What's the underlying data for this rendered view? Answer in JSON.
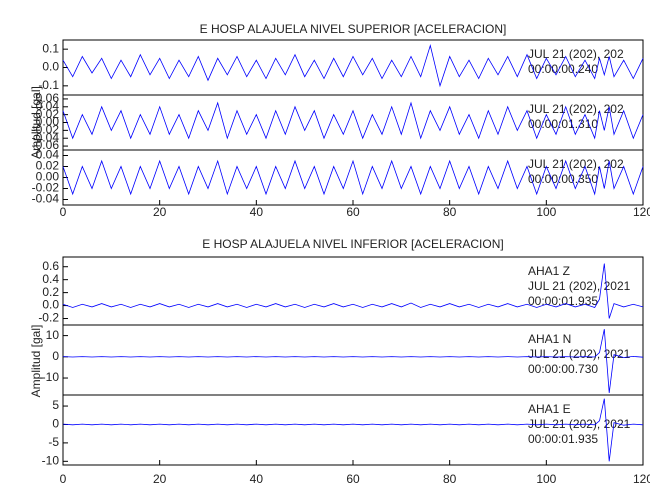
{
  "chart_data": [
    {
      "type": "line",
      "title": "E HOSP ALAJUELA NIVEL SUPERIOR [ACELERACION]",
      "ylabel": "Amplitud [gal]",
      "color": "#0000ff",
      "x": [
        0,
        2,
        4,
        6,
        8,
        10,
        12,
        14,
        16,
        18,
        20,
        22,
        24,
        26,
        28,
        30,
        32,
        34,
        36,
        38,
        40,
        42,
        44,
        46,
        48,
        50,
        52,
        54,
        56,
        58,
        60,
        62,
        64,
        66,
        68,
        70,
        72,
        74,
        76,
        78,
        80,
        82,
        84,
        86,
        88,
        90,
        92,
        94,
        96,
        98,
        100,
        102,
        104,
        106,
        108,
        110,
        111,
        112,
        113,
        114,
        116,
        118,
        120
      ],
      "xlim": [
        0,
        120
      ],
      "xticks": [
        0,
        20,
        40,
        60,
        80,
        100,
        120
      ],
      "panels": [
        {
          "annotations": [
            "JUL 21 (202), 202",
            "00:00:00.240"
          ],
          "ylim": [
            -0.15,
            0.15
          ],
          "yticks": [
            0.1,
            {
              "value": 0,
              "label": "0.0"
            },
            -0.1
          ],
          "values": [
            0.04,
            -0.05,
            0.06,
            -0.03,
            0.05,
            -0.06,
            0.04,
            -0.05,
            0.07,
            -0.04,
            0.05,
            -0.06,
            0.04,
            -0.05,
            0.06,
            -0.07,
            0.05,
            -0.04,
            0.06,
            -0.05,
            0.04,
            -0.06,
            0.05,
            -0.04,
            0.07,
            -0.05,
            0.04,
            -0.06,
            0.05,
            -0.05,
            0.06,
            -0.04,
            0.05,
            -0.06,
            0.04,
            -0.05,
            0.06,
            -0.05,
            0.12,
            -0.1,
            0.06,
            -0.05,
            0.04,
            -0.06,
            0.05,
            -0.04,
            0.06,
            -0.05,
            0.07,
            -0.06,
            0.05,
            -0.04,
            0.06,
            -0.05,
            0.04,
            -0.06,
            0.05,
            -0.04,
            0.06,
            -0.05,
            0.04,
            -0.06,
            0.05
          ]
        },
        {
          "annotations": [
            "JUL 21 (202), 202",
            "00:00:01.310"
          ],
          "ylim": [
            -0.07,
            0.07
          ],
          "yticks": [
            0.06,
            0.04,
            0.02,
            {
              "value": 0,
              "label": "0.00"
            },
            -0.02,
            -0.04,
            -0.06
          ],
          "values": [
            0.03,
            -0.04,
            0.02,
            -0.03,
            0.04,
            -0.02,
            0.03,
            -0.04,
            0.02,
            -0.03,
            0.04,
            -0.03,
            0.02,
            -0.04,
            0.03,
            -0.02,
            0.05,
            -0.04,
            0.03,
            -0.03,
            0.02,
            -0.04,
            0.03,
            -0.03,
            0.04,
            -0.02,
            0.03,
            -0.04,
            0.02,
            -0.03,
            0.03,
            -0.04,
            0.02,
            -0.03,
            0.04,
            -0.03,
            0.05,
            -0.04,
            0.03,
            -0.02,
            0.04,
            -0.03,
            0.02,
            -0.04,
            0.03,
            -0.03,
            0.04,
            -0.02,
            0.03,
            -0.04,
            0.02,
            -0.03,
            0.04,
            -0.03,
            0.02,
            -0.04,
            0.03,
            -0.02,
            0.04,
            -0.03,
            0.03,
            -0.04,
            0.02
          ]
        },
        {
          "annotations": [
            "JUL 21 (202), 202",
            "00:00:00.350"
          ],
          "ylim": [
            -0.05,
            0.05
          ],
          "yticks": [
            0.04,
            0.02,
            {
              "value": 0,
              "label": "0.00"
            },
            -0.02,
            -0.04
          ],
          "values": [
            0.02,
            -0.03,
            0.02,
            -0.02,
            0.03,
            -0.02,
            0.02,
            -0.03,
            0.02,
            -0.02,
            0.03,
            -0.02,
            0.02,
            -0.03,
            0.02,
            -0.02,
            0.03,
            -0.03,
            0.02,
            -0.02,
            0.02,
            -0.03,
            0.02,
            -0.02,
            0.03,
            -0.02,
            0.02,
            -0.03,
            0.02,
            -0.02,
            0.03,
            -0.03,
            0.02,
            -0.02,
            0.03,
            -0.02,
            0.02,
            -0.03,
            0.02,
            -0.02,
            0.03,
            -0.02,
            0.02,
            -0.03,
            0.02,
            -0.02,
            0.03,
            -0.02,
            0.02,
            -0.03,
            0.02,
            -0.02,
            0.03,
            -0.02,
            0.02,
            -0.03,
            0.02,
            -0.02,
            0.03,
            -0.02,
            0.02,
            -0.03,
            0.02
          ]
        }
      ]
    },
    {
      "type": "line",
      "title": "E HOSP ALAJUELA NIVEL INFERIOR [ACELERACION]",
      "ylabel": "Amplitud [gal]",
      "color": "#0000ff",
      "x": [
        0,
        2,
        4,
        6,
        8,
        10,
        12,
        14,
        16,
        18,
        20,
        22,
        24,
        26,
        28,
        30,
        32,
        34,
        36,
        38,
        40,
        42,
        44,
        46,
        48,
        50,
        52,
        54,
        56,
        58,
        60,
        62,
        64,
        66,
        68,
        70,
        72,
        74,
        76,
        78,
        80,
        82,
        84,
        86,
        88,
        90,
        92,
        94,
        96,
        98,
        100,
        102,
        104,
        106,
        108,
        110,
        111,
        112,
        113,
        114,
        116,
        118,
        120
      ],
      "xlim": [
        0,
        120
      ],
      "xticks": [
        0,
        20,
        40,
        60,
        80,
        100,
        120
      ],
      "panels": [
        {
          "annotations": [
            "AHA1   Z",
            "JUL 21 (202), 2021",
            "00:00:01.935"
          ],
          "ylim": [
            -0.3,
            0.75
          ],
          "yticks": [
            0.6,
            0.4,
            0.2,
            {
              "value": 0,
              "label": "0.0"
            },
            -0.2
          ],
          "values": [
            0.02,
            -0.03,
            0.02,
            -0.02,
            0.03,
            -0.02,
            0.02,
            -0.03,
            0.02,
            -0.02,
            0.03,
            -0.02,
            0.02,
            -0.03,
            0.02,
            -0.02,
            0.03,
            -0.02,
            0.02,
            -0.03,
            0.02,
            -0.02,
            0.03,
            -0.02,
            0.02,
            -0.03,
            0.02,
            -0.02,
            0.03,
            -0.02,
            0.02,
            -0.03,
            0.02,
            -0.02,
            0.03,
            -0.02,
            0.04,
            -0.03,
            0.02,
            -0.02,
            0.03,
            -0.02,
            0.02,
            -0.03,
            0.02,
            -0.02,
            0.03,
            -0.02,
            0.02,
            -0.03,
            0.02,
            -0.02,
            0.03,
            -0.02,
            0.02,
            -0.03,
            0.1,
            0.65,
            -0.2,
            0.03,
            -0.02,
            0.02,
            -0.02
          ]
        },
        {
          "annotations": [
            "AHA1   N",
            "JUL 21 (202), 2021",
            "00:00:00.730"
          ],
          "ylim": [
            -18,
            15
          ],
          "yticks": [
            10,
            0,
            -10
          ],
          "values": [
            0.1,
            -0.1,
            0.1,
            -0.1,
            0.1,
            -0.1,
            0.1,
            -0.1,
            0.1,
            -0.1,
            0.1,
            -0.1,
            0.1,
            -0.1,
            0.1,
            -0.1,
            0.1,
            -0.1,
            0.1,
            -0.1,
            0.1,
            -0.1,
            0.1,
            -0.1,
            0.1,
            -0.1,
            0.1,
            -0.1,
            0.1,
            -0.1,
            0.1,
            -0.1,
            0.1,
            -0.1,
            0.1,
            -0.1,
            0.1,
            -0.1,
            0.1,
            -0.1,
            0.1,
            -0.1,
            0.1,
            -0.1,
            0.1,
            -0.1,
            0.1,
            -0.1,
            0.1,
            -0.1,
            0.1,
            -0.1,
            0.1,
            -0.1,
            0.1,
            -0.1,
            2,
            13,
            -17,
            1,
            -0.3,
            0.2,
            -0.2
          ]
        },
        {
          "annotations": [
            "AHA1   E",
            "JUL 21 (202), 2021",
            "00:00:01.935"
          ],
          "ylim": [
            -11,
            8
          ],
          "yticks": [
            5,
            0,
            -5,
            -10
          ],
          "values": [
            0.1,
            -0.1,
            0.1,
            -0.1,
            0.1,
            -0.1,
            0.1,
            -0.1,
            0.1,
            -0.1,
            0.1,
            -0.1,
            0.1,
            -0.1,
            0.1,
            -0.1,
            0.1,
            -0.1,
            0.1,
            -0.1,
            0.1,
            -0.1,
            0.1,
            -0.1,
            0.1,
            -0.1,
            0.1,
            -0.1,
            0.1,
            -0.1,
            0.1,
            -0.1,
            0.1,
            -0.1,
            0.1,
            -0.1,
            0.1,
            -0.1,
            0.1,
            -0.1,
            0.1,
            -0.1,
            0.1,
            -0.1,
            0.1,
            -0.1,
            0.1,
            -0.1,
            0.1,
            -0.1,
            0.1,
            -0.1,
            0.1,
            -0.1,
            0.1,
            -0.1,
            1,
            7,
            -10,
            0.5,
            -0.2,
            0.1,
            -0.1
          ]
        }
      ]
    }
  ]
}
